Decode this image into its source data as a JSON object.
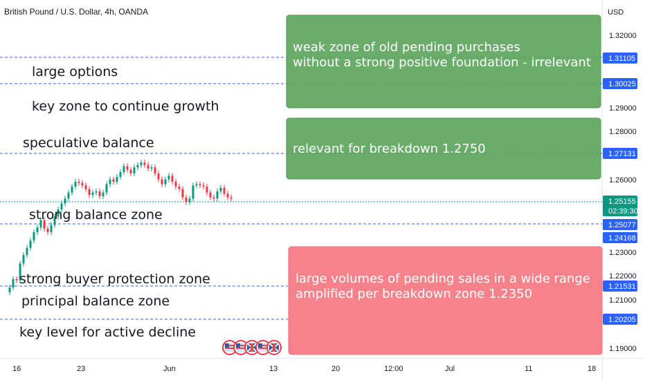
{
  "chart_data": {
    "type": "candlestick",
    "title": "British Pound / U.S. Dollar, 4h, OANDA",
    "currency": "USD",
    "y_ticks": [
      "1.32000",
      "1.29000",
      "1.28000",
      "1.26000",
      "1.23000",
      "1.22000",
      "1.21000",
      "1.19000"
    ],
    "x_ticks": [
      "16",
      "23",
      "Jun",
      "13",
      "20",
      "12:00",
      "Jul",
      "11",
      "18"
    ],
    "price_label": {
      "value": "1.25155",
      "countdown": "02:39:30",
      "color": "#089981"
    },
    "price_series": [
      1.215,
      1.2185,
      1.218,
      1.225,
      1.2285,
      1.2315,
      1.2345,
      1.238,
      1.24,
      1.243,
      1.2395,
      1.238,
      1.241,
      1.2445,
      1.2475,
      1.25,
      1.252,
      1.2545,
      1.257,
      1.259,
      1.2585,
      1.2575,
      1.256,
      1.2535,
      1.2545,
      1.255,
      1.253,
      1.2545,
      1.258,
      1.26,
      1.259,
      1.261,
      1.263,
      1.2655,
      1.264,
      1.2625,
      1.265,
      1.266,
      1.267,
      1.266,
      1.2645,
      1.265,
      1.2625,
      1.26,
      1.258,
      1.26,
      1.2615,
      1.259,
      1.257,
      1.256,
      1.2525,
      1.2505,
      1.252,
      1.2575,
      1.258,
      1.2575,
      1.257,
      1.2545,
      1.2525,
      1.252,
      1.255,
      1.2565,
      1.254,
      1.2525,
      1.252
    ],
    "levels": [
      {
        "value": "1.31105",
        "label": "large options",
        "color": "#2962ff"
      },
      {
        "value": "1.30025",
        "label": "key zone to continue growth",
        "color": "#2962ff"
      },
      {
        "value": "1.27131",
        "label": "speculative balance",
        "color": "#2962ff"
      },
      {
        "value": "1.25077",
        "label": "strong balance zone",
        "color": "#2962ff"
      },
      {
        "value": "1.24168",
        "label": "",
        "color": "#2962ff"
      },
      {
        "value": "1.21531",
        "label": "strong buyer protection zone",
        "color": "#2962ff"
      },
      {
        "value": "1.20205",
        "label": "principal balance zone",
        "color": "#2962ff"
      }
    ],
    "extra_label": "key level for active decline",
    "annotations": [
      {
        "line1": "weak zone of  old pending purchases",
        "line2": "without a strong positive foundation - irrelevant",
        "color": "#5aa35a"
      },
      {
        "line1": "relevant for breakdown 1.2750",
        "line2": "",
        "color": "#5aa35a"
      },
      {
        "line1": "large volumes of pending sales in a wide range",
        "line2": "amplified per breakdown zone 1.2350",
        "color": "#f7828c"
      }
    ],
    "grid": false,
    "legend": "none"
  },
  "colors": {
    "up": "#089981",
    "down": "#f23645",
    "level": "#2962ff"
  },
  "icons": [
    "us-flag-icon",
    "uk-flag-icon"
  ]
}
